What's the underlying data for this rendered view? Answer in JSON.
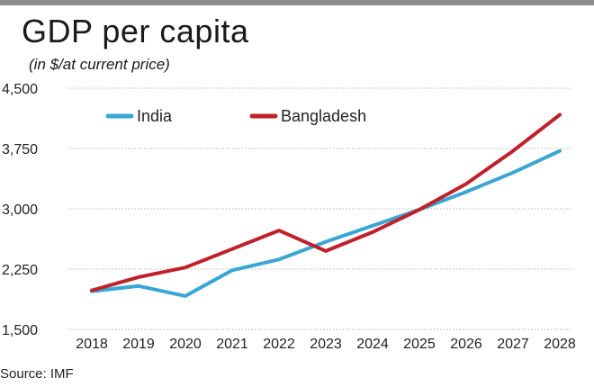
{
  "chart_data": {
    "type": "line",
    "title": "GDP per capita",
    "subtitle": "(in $/at current price)",
    "x": [
      "2018",
      "2019",
      "2020",
      "2021",
      "2022",
      "2023",
      "2024",
      "2025",
      "2026",
      "2027",
      "2028"
    ],
    "ylim": [
      1500,
      4500
    ],
    "yticks": [
      "1,500",
      "2,250",
      "3,000",
      "3,750",
      "4,500"
    ],
    "yticks_values": [
      1500,
      2250,
      3000,
      3750,
      4500
    ],
    "grid": true,
    "legend_placement": "top-left",
    "series": [
      {
        "name": "India",
        "color": "#3aa6d4",
        "values": [
          1975,
          2040,
          1915,
          2235,
          2370,
          2590,
          2790,
          2990,
          3210,
          3450,
          3720
        ]
      },
      {
        "name": "Bangladesh",
        "color": "#c0202a",
        "values": [
          1985,
          2150,
          2270,
          2500,
          2730,
          2475,
          2710,
          2990,
          3310,
          3720,
          4170
        ]
      }
    ]
  },
  "source": "Source: IMF"
}
